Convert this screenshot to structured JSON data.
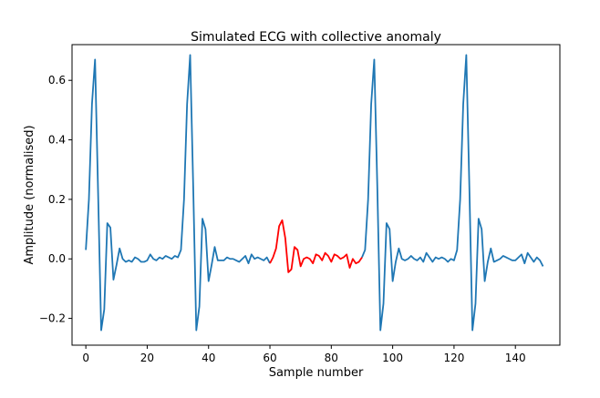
{
  "chart_data": {
    "type": "line",
    "title": "Simulated ECG with collective anomaly",
    "xlabel": "Sample number",
    "ylabel": "Amplitude (normalised)",
    "xlim": [
      -4.5,
      154.5
    ],
    "ylim": [
      -0.29,
      0.72
    ],
    "xticks": [
      0,
      20,
      40,
      60,
      80,
      100,
      120,
      140
    ],
    "yticks": [
      -0.2,
      0.0,
      0.2,
      0.4,
      0.6
    ],
    "ytick_labels": [
      "−0.2",
      "0.0",
      "0.2",
      "0.4",
      "0.6"
    ],
    "grid": false,
    "colors": {
      "normal": "#1f77b4",
      "anomaly": "#ff0000"
    },
    "anomaly_range": [
      60,
      90
    ],
    "series": [
      {
        "name": "ECG",
        "x_start": 0,
        "values": [
          0.03,
          0.2,
          0.52,
          0.67,
          0.22,
          -0.24,
          -0.17,
          0.12,
          0.105,
          -0.07,
          -0.02,
          0.035,
          0.0,
          -0.01,
          -0.005,
          -0.01,
          0.005,
          0.0,
          -0.01,
          -0.01,
          -0.005,
          0.015,
          0.0,
          -0.005,
          0.005,
          0.0,
          0.01,
          0.005,
          0.0,
          0.01,
          0.005,
          0.03,
          0.2,
          0.52,
          0.685,
          0.24,
          -0.24,
          -0.16,
          0.135,
          0.1,
          -0.075,
          -0.02,
          0.04,
          -0.005,
          -0.005,
          -0.005,
          0.005,
          0.0,
          0.0,
          -0.005,
          -0.01,
          0.0,
          0.01,
          -0.015,
          0.015,
          0.0,
          0.005,
          0.0,
          -0.005,
          0.005,
          -0.015,
          0.005,
          0.035,
          0.11,
          0.13,
          0.07,
          -0.045,
          -0.035,
          0.04,
          0.03,
          -0.025,
          0.0,
          0.005,
          0.0,
          -0.015,
          0.015,
          0.01,
          -0.005,
          0.02,
          0.01,
          -0.01,
          0.015,
          0.01,
          0.0,
          0.005,
          0.015,
          -0.03,
          0.0,
          -0.015,
          -0.01,
          0.005,
          0.03,
          0.2,
          0.52,
          0.67,
          0.24,
          -0.24,
          -0.15,
          0.12,
          0.1,
          -0.075,
          -0.01,
          0.035,
          0.0,
          -0.005,
          0.0,
          0.01,
          0.0,
          -0.005,
          0.005,
          -0.01,
          0.02,
          0.005,
          -0.01,
          0.005,
          0.0,
          0.005,
          0.0,
          -0.01,
          0.0,
          -0.005,
          0.03,
          0.2,
          0.52,
          0.685,
          0.24,
          -0.24,
          -0.15,
          0.135,
          0.1,
          -0.075,
          -0.01,
          0.035,
          -0.01,
          -0.005,
          0.0,
          0.01,
          0.005,
          0.0,
          -0.005,
          -0.005,
          0.005,
          0.015,
          -0.015,
          0.02,
          0.005,
          -0.01,
          0.005,
          -0.005,
          -0.025
        ]
      }
    ]
  }
}
